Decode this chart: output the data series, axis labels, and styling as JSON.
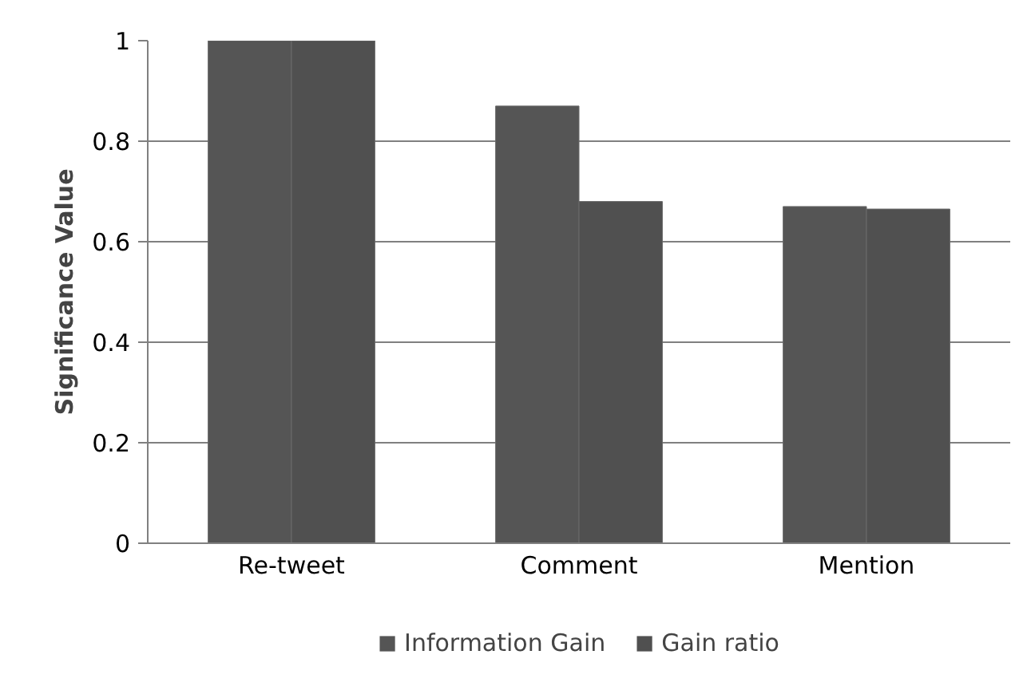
{
  "chart_data": {
    "type": "bar",
    "ylabel": "Significance Value",
    "categories": [
      "Re-tweet",
      "Comment",
      "Mention"
    ],
    "series": [
      {
        "name": "Information Gain",
        "color": "#555555",
        "values": [
          1,
          0.87,
          0.67
        ]
      },
      {
        "name": "Gain ratio",
        "color": "#505050",
        "values": [
          1,
          0.68,
          0.665
        ]
      }
    ],
    "ylim": [
      0,
      1
    ],
    "yticks": [
      0,
      0.2,
      0.4,
      0.6,
      0.8,
      1
    ],
    "grid": "y",
    "legend": "bottom"
  }
}
